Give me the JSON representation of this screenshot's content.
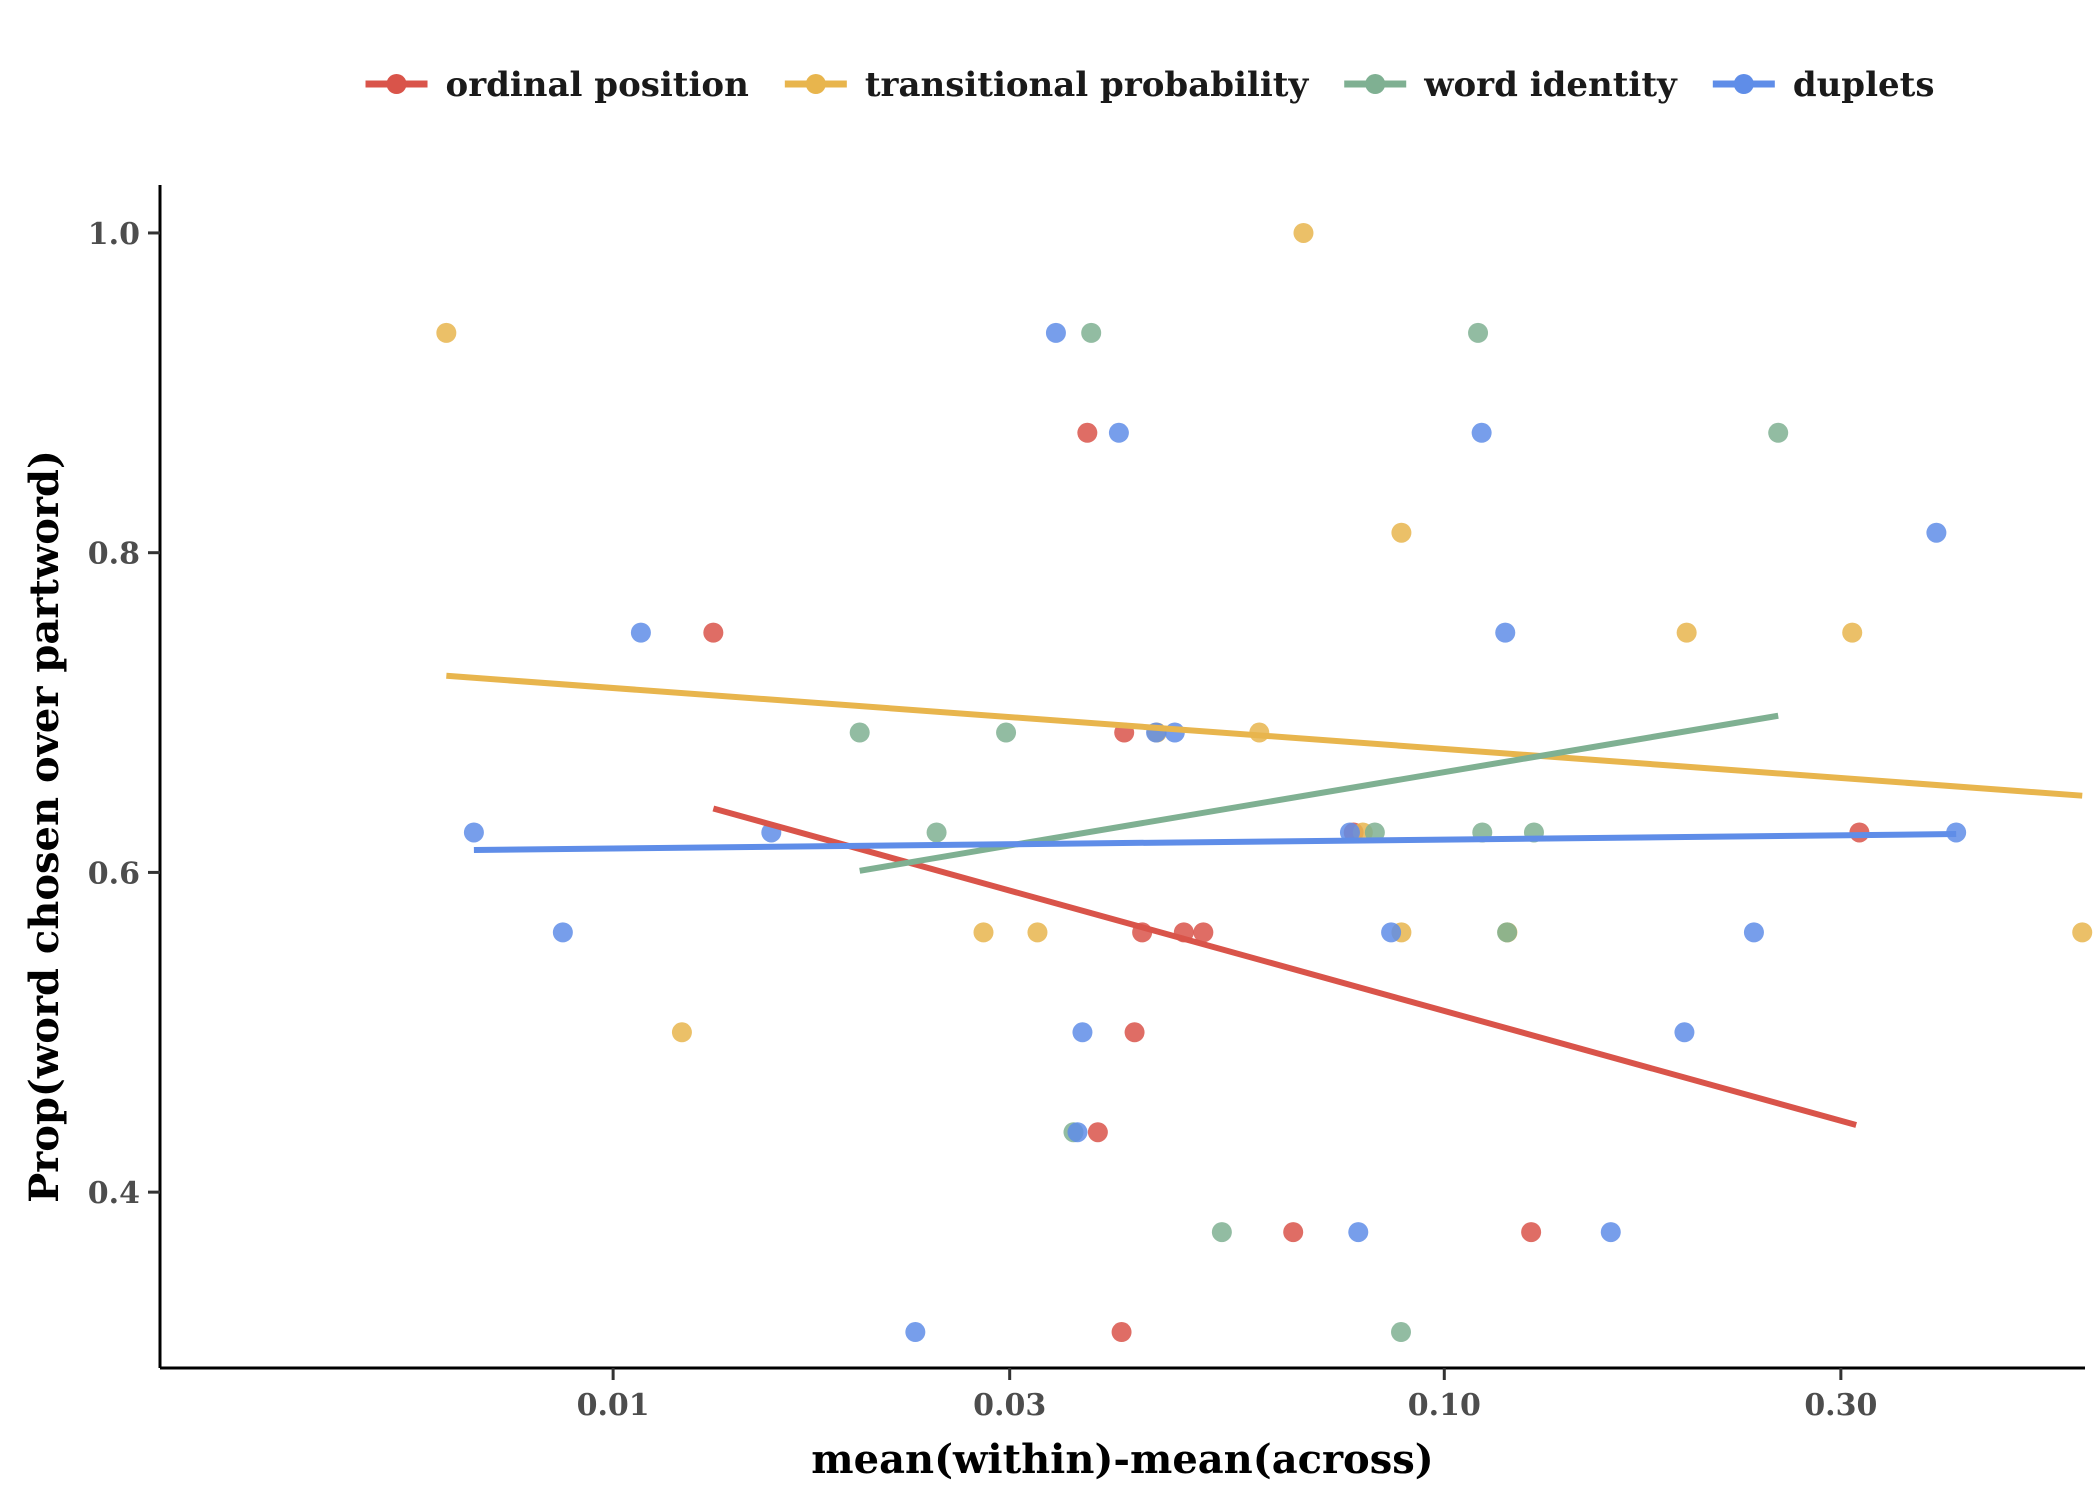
{
  "chart_data": {
    "type": "scatter",
    "xlabel": "mean(within)-mean(across)",
    "ylabel": "Prop(word chosen over partword)",
    "x_scale": "log10",
    "xlim": [
      0.00285,
      0.59
    ],
    "ylim": [
      0.29,
      1.03
    ],
    "x_ticks": [
      {
        "value": 0.01,
        "label": "0.01"
      },
      {
        "value": 0.03,
        "label": "0.03"
      },
      {
        "value": 0.1,
        "label": "0.10"
      },
      {
        "value": 0.3,
        "label": "0.30"
      }
    ],
    "y_ticks": [
      {
        "value": 0.4,
        "label": "0.4"
      },
      {
        "value": 0.6,
        "label": "0.6"
      },
      {
        "value": 0.8,
        "label": "0.8"
      },
      {
        "value": 1.0,
        "label": "1.0"
      }
    ],
    "grid": false,
    "legend_position": "top",
    "series": [
      {
        "name": "ordinal position",
        "color": "#d9544a",
        "points": [
          [
            0.0132,
            0.75
          ],
          [
            0.0372,
            0.875
          ],
          [
            0.0412,
            0.6875
          ],
          [
            0.0424,
            0.5
          ],
          [
            0.0433,
            0.5625
          ],
          [
            0.0486,
            0.5625
          ],
          [
            0.0513,
            0.5625
          ],
          [
            0.0383,
            0.4375
          ],
          [
            0.0409,
            0.3125
          ],
          [
            0.0658,
            0.375
          ],
          [
            0.0778,
            0.625
          ],
          [
            0.1272,
            0.375
          ],
          [
            0.3158,
            0.625
          ]
        ],
        "trend": [
          [
            0.0132,
            0.64
          ],
          [
            0.313,
            0.442
          ]
        ]
      },
      {
        "name": "transitional probability",
        "color": "#e8b54d",
        "points": [
          [
            0.0063,
            0.9375
          ],
          [
            0.0121,
            0.5
          ],
          [
            0.0279,
            0.5625
          ],
          [
            0.0324,
            0.5625
          ],
          [
            0.0677,
            1.0
          ],
          [
            0.0599,
            0.6875
          ],
          [
            0.0451,
            0.6875
          ],
          [
            0.0888,
            0.8125
          ],
          [
            0.0888,
            0.5625
          ],
          [
            0.0798,
            0.625
          ],
          [
            0.1191,
            0.5625
          ],
          [
            0.1957,
            0.75
          ],
          [
            0.3096,
            0.75
          ],
          [
            0.5855,
            0.5625
          ]
        ],
        "trend": [
          [
            0.0063,
            0.723
          ],
          [
            0.5855,
            0.648
          ]
        ]
      },
      {
        "name": "word identity",
        "color": "#7fb092",
        "points": [
          [
            0.0198,
            0.6875
          ],
          [
            0.0297,
            0.6875
          ],
          [
            0.0245,
            0.625
          ],
          [
            0.0358,
            0.4375
          ],
          [
            0.0376,
            0.9375
          ],
          [
            0.054,
            0.375
          ],
          [
            0.0825,
            0.625
          ],
          [
            0.0887,
            0.3125
          ],
          [
            0.1098,
            0.9375
          ],
          [
            0.1111,
            0.625
          ],
          [
            0.119,
            0.5625
          ],
          [
            0.1282,
            0.625
          ],
          [
            0.2522,
            0.875
          ]
        ],
        "trend": [
          [
            0.0198,
            0.601
          ],
          [
            0.2522,
            0.698
          ]
        ]
      },
      {
        "name": "duplets",
        "color": "#5f8de8",
        "points": [
          [
            0.0068,
            0.625
          ],
          [
            0.0087,
            0.5625
          ],
          [
            0.0108,
            0.75
          ],
          [
            0.0155,
            0.625
          ],
          [
            0.0231,
            0.3125
          ],
          [
            0.0341,
            0.9375
          ],
          [
            0.0367,
            0.5
          ],
          [
            0.0362,
            0.4375
          ],
          [
            0.0406,
            0.875
          ],
          [
            0.045,
            0.6875
          ],
          [
            0.0474,
            0.6875
          ],
          [
            0.077,
            0.625
          ],
          [
            0.0788,
            0.375
          ],
          [
            0.0863,
            0.5625
          ],
          [
            0.1109,
            0.875
          ],
          [
            0.1184,
            0.75
          ],
          [
            0.1586,
            0.375
          ],
          [
            0.1945,
            0.5
          ],
          [
            0.2358,
            0.5625
          ],
          [
            0.3909,
            0.8125
          ],
          [
            0.4129,
            0.625
          ]
        ],
        "trend": [
          [
            0.0068,
            0.614
          ],
          [
            0.4129,
            0.624
          ]
        ]
      }
    ]
  }
}
